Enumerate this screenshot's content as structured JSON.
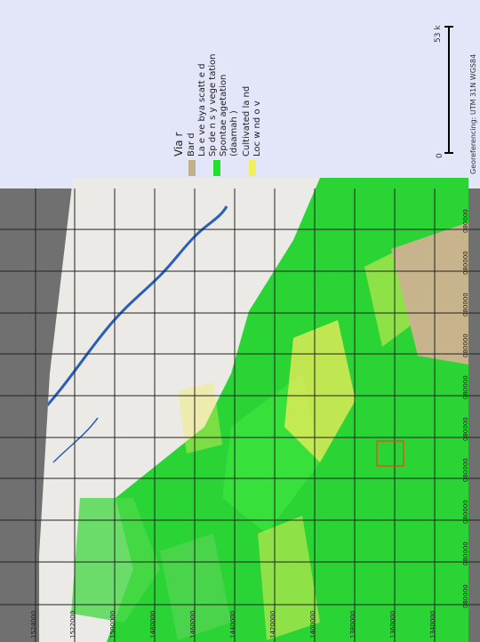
{
  "legend": {
    "title": "Via r",
    "items": [
      {
        "label": "Bar   d",
        "color": "#c2b08a"
      },
      {
        "label": "La e   ve   bya  scatt  e d",
        "color": null
      },
      {
        "label": "Sp de n  s  y  vege  tation",
        "color": "#21e02a"
      },
      {
        "label": "Spontae   agetation",
        "color": "#21e02a"
      },
      {
        "label": "(daamah )",
        "color": null
      },
      {
        "label": "Cultivated la nd",
        "color": "#f3ee5c"
      },
      {
        "label": "Loc w nd o v",
        "color": "#2a5fb8"
      }
    ]
  },
  "scalebar": {
    "zero": "0",
    "value": "53 k"
  },
  "georeference": "Georeferencing: UTM 31N WGS84",
  "eastings": [
    "1524000",
    "1522000",
    "1500000",
    "1480000",
    "1460000",
    "1440000",
    "1420000",
    "1400000",
    "1380000",
    "1360000",
    "1340000"
  ],
  "northings": [
    "080000",
    "080000",
    "080000",
    "080000",
    "080000",
    "080000",
    "080000",
    "080000",
    "080000",
    "080000"
  ],
  "colors": {
    "panel": "#e3e6f8",
    "background": "#707070",
    "bare": "#eceae6",
    "vegetation": "#21e02a",
    "cultivated": "#f3ee5c",
    "water": "#2a5fb8",
    "sand": "#c8b48c",
    "frame": "#222222",
    "highlight": "#ff3b1a"
  }
}
